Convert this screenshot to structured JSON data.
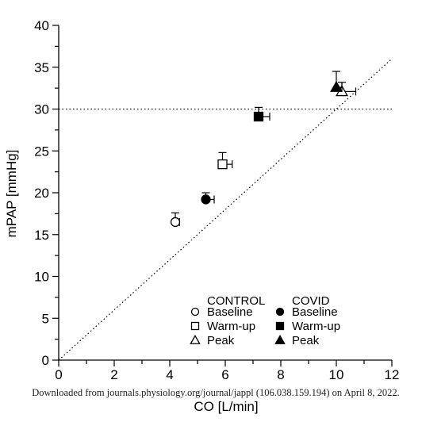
{
  "chart_data": {
    "type": "scatter",
    "xlabel": "CO [L/min]",
    "ylabel": "mPAP [mmHg]",
    "xlim": [
      0,
      12
    ],
    "ylim": [
      0,
      40
    ],
    "x_ticks": [
      "0",
      "2",
      "4",
      "6",
      "8",
      "10",
      "12"
    ],
    "y_ticks": [
      "0",
      "5",
      "10",
      "15",
      "20",
      "25",
      "30",
      "35",
      "40"
    ],
    "reference_lines": [
      {
        "kind": "horizontal",
        "y": 30,
        "style": "dotted"
      },
      {
        "kind": "identity",
        "from": [
          0,
          0
        ],
        "to": [
          12,
          36
        ],
        "style": "dotted"
      }
    ],
    "legend": {
      "placement": "bottom-right",
      "groups": [
        {
          "title": "CONTROL",
          "entries": [
            "Baseline",
            "Warm-up",
            "Peak"
          ],
          "fill": "open"
        },
        {
          "title": "COVID",
          "entries": [
            "Baseline",
            "Warm-up",
            "Peak"
          ],
          "fill": "filled"
        }
      ]
    },
    "series": [
      {
        "name": "CONTROL",
        "fill": "open",
        "points": [
          {
            "label": "Baseline",
            "marker": "circle",
            "x": 4.2,
            "y": 16.5,
            "x_err": 0.15,
            "y_err": 1.1
          },
          {
            "label": "Warm-up",
            "marker": "square",
            "x": 5.9,
            "y": 23.4,
            "x_err": 0.35,
            "y_err": 1.4
          },
          {
            "label": "Peak",
            "marker": "triangle",
            "x": 10.2,
            "y": 32.1,
            "x_err": 0.5,
            "y_err": 1.1
          }
        ]
      },
      {
        "name": "COVID",
        "fill": "filled",
        "points": [
          {
            "label": "Baseline",
            "marker": "circle",
            "x": 5.3,
            "y": 19.2,
            "x_err": 0.3,
            "y_err": 0.8
          },
          {
            "label": "Warm-up",
            "marker": "square",
            "x": 7.2,
            "y": 29.1,
            "x_err": 0.4,
            "y_err": 1.1
          },
          {
            "label": "Peak",
            "marker": "triangle",
            "x": 10.0,
            "y": 32.6,
            "x_err": 0.2,
            "y_err": 1.9
          }
        ]
      }
    ],
    "colors": {
      "ink": "#000000",
      "background": "#ffffff"
    }
  },
  "footer": {
    "watermark": "Downloaded from journals.physiology.org/journal/jappl (106.038.159.194) on April 8, 2022."
  }
}
